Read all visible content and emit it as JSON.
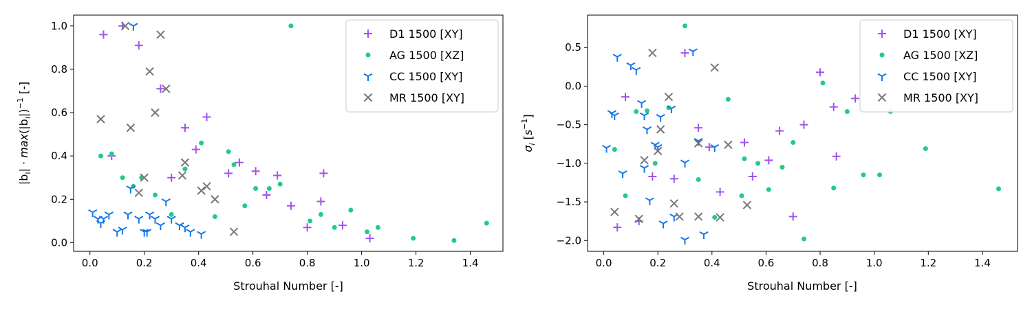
{
  "colors": {
    "D1": "#a052f0",
    "AG": "#22cc88",
    "CC": "#1177ee",
    "MR": "#777777"
  },
  "chart_data": [
    {
      "type": "scatter",
      "xlabel": "Strouhal Number [-]",
      "ylabel": "|b_i| · max(|b_i|)^{-1} [-]",
      "xlim": [
        -0.06,
        1.52
      ],
      "ylim": [
        -0.04,
        1.05
      ],
      "xticks": [
        0.0,
        0.2,
        0.4,
        0.6,
        0.8,
        1.0,
        1.2,
        1.4
      ],
      "xtick_labels": [
        "0.0",
        "0.2",
        "0.4",
        "0.6",
        "0.8",
        "1.0",
        "1.2",
        "1.4"
      ],
      "yticks": [
        0.0,
        0.2,
        0.4,
        0.6,
        0.8,
        1.0
      ],
      "ytick_labels": [
        "0.0",
        "0.2",
        "0.4",
        "0.6",
        "0.8",
        "1.0"
      ],
      "legend_position": "top-right",
      "series": [
        {
          "name": "D1 1500 [XY]",
          "key": "D1",
          "marker": "plus",
          "points": [
            [
              0.05,
              0.96
            ],
            [
              0.08,
              0.4
            ],
            [
              0.12,
              1.0
            ],
            [
              0.18,
              0.91
            ],
            [
              0.26,
              0.71
            ],
            [
              0.3,
              0.3
            ],
            [
              0.35,
              0.53
            ],
            [
              0.39,
              0.43
            ],
            [
              0.43,
              0.58
            ],
            [
              0.51,
              0.32
            ],
            [
              0.55,
              0.37
            ],
            [
              0.61,
              0.33
            ],
            [
              0.65,
              0.22
            ],
            [
              0.69,
              0.31
            ],
            [
              0.74,
              0.17
            ],
            [
              0.8,
              0.07
            ],
            [
              0.85,
              0.19
            ],
            [
              0.86,
              0.32
            ],
            [
              0.93,
              0.08
            ],
            [
              1.03,
              0.02
            ]
          ]
        },
        {
          "name": "AG 1500 [XZ]",
          "key": "AG",
          "marker": "dot",
          "points": [
            [
              0.04,
              0.4
            ],
            [
              0.08,
              0.41
            ],
            [
              0.12,
              0.3
            ],
            [
              0.16,
              0.26
            ],
            [
              0.19,
              0.3
            ],
            [
              0.24,
              0.22
            ],
            [
              0.3,
              0.13
            ],
            [
              0.35,
              0.34
            ],
            [
              0.41,
              0.46
            ],
            [
              0.46,
              0.12
            ],
            [
              0.51,
              0.42
            ],
            [
              0.53,
              0.36
            ],
            [
              0.57,
              0.17
            ],
            [
              0.61,
              0.25
            ],
            [
              0.66,
              0.25
            ],
            [
              0.7,
              0.27
            ],
            [
              0.74,
              1.0
            ],
            [
              0.81,
              0.1
            ],
            [
              0.85,
              0.13
            ],
            [
              0.9,
              0.07
            ],
            [
              0.96,
              0.15
            ],
            [
              1.02,
              0.05
            ],
            [
              1.06,
              0.07
            ],
            [
              1.19,
              0.02
            ],
            [
              1.34,
              0.01
            ],
            [
              1.46,
              0.09
            ]
          ]
        },
        {
          "name": "CC 1500 [XY]",
          "key": "CC",
          "marker": "tri",
          "points": [
            [
              0.01,
              0.14
            ],
            [
              0.03,
              0.11
            ],
            [
              0.04,
              0.09
            ],
            [
              0.05,
              0.11
            ],
            [
              0.07,
              0.13
            ],
            [
              0.1,
              0.05
            ],
            [
              0.12,
              0.06
            ],
            [
              0.14,
              0.13
            ],
            [
              0.15,
              0.25
            ],
            [
              0.16,
              1.0
            ],
            [
              0.18,
              0.11
            ],
            [
              0.2,
              0.05
            ],
            [
              0.21,
              0.05
            ],
            [
              0.22,
              0.13
            ],
            [
              0.24,
              0.11
            ],
            [
              0.26,
              0.08
            ],
            [
              0.28,
              0.19
            ],
            [
              0.3,
              0.11
            ],
            [
              0.33,
              0.08
            ],
            [
              0.35,
              0.07
            ],
            [
              0.37,
              0.05
            ],
            [
              0.41,
              0.04
            ]
          ]
        },
        {
          "name": "MR 1500 [XY]",
          "key": "MR",
          "marker": "x",
          "points": [
            [
              0.04,
              0.57
            ],
            [
              0.13,
              1.0
            ],
            [
              0.15,
              0.53
            ],
            [
              0.18,
              0.23
            ],
            [
              0.2,
              0.3
            ],
            [
              0.22,
              0.79
            ],
            [
              0.24,
              0.6
            ],
            [
              0.26,
              0.96
            ],
            [
              0.28,
              0.71
            ],
            [
              0.34,
              0.31
            ],
            [
              0.35,
              0.37
            ],
            [
              0.41,
              0.24
            ],
            [
              0.43,
              0.26
            ],
            [
              0.46,
              0.2
            ],
            [
              0.53,
              0.05
            ]
          ]
        }
      ]
    },
    {
      "type": "scatter",
      "xlabel": "Strouhal Number [-]",
      "ylabel": "σ_i [s^{-1}]",
      "xlim": [
        -0.06,
        1.53
      ],
      "ylim": [
        -2.14,
        0.92
      ],
      "xticks": [
        0.0,
        0.2,
        0.4,
        0.6,
        0.8,
        1.0,
        1.2,
        1.4
      ],
      "xtick_labels": [
        "0.0",
        "0.2",
        "0.4",
        "0.6",
        "0.8",
        "1.0",
        "1.2",
        "1.4"
      ],
      "yticks": [
        0.5,
        0.0,
        -0.5,
        -1.0,
        -1.5,
        -2.0
      ],
      "ytick_labels": [
        "0.5",
        "0.0",
        "−0.5",
        "−1.0",
        "−1.5",
        "−2.0"
      ],
      "legend_position": "top-right",
      "series": [
        {
          "name": "D1 1500 [XY]",
          "key": "D1",
          "marker": "plus",
          "points": [
            [
              0.05,
              -1.83
            ],
            [
              0.08,
              -0.14
            ],
            [
              0.13,
              -1.75
            ],
            [
              0.18,
              -1.17
            ],
            [
              0.26,
              -1.2
            ],
            [
              0.3,
              0.43
            ],
            [
              0.35,
              -0.54
            ],
            [
              0.39,
              -0.79
            ],
            [
              0.43,
              -1.37
            ],
            [
              0.52,
              -0.73
            ],
            [
              0.55,
              -1.17
            ],
            [
              0.61,
              -0.96
            ],
            [
              0.65,
              -0.58
            ],
            [
              0.7,
              -1.69
            ],
            [
              0.74,
              -0.5
            ],
            [
              0.8,
              0.18
            ],
            [
              0.85,
              -0.27
            ],
            [
              0.86,
              -0.91
            ],
            [
              0.93,
              -0.16
            ]
          ]
        },
        {
          "name": "AG 1500 [XZ]",
          "key": "AG",
          "marker": "dot",
          "points": [
            [
              0.04,
              -0.82
            ],
            [
              0.08,
              -1.42
            ],
            [
              0.12,
              -0.33
            ],
            [
              0.16,
              -0.32
            ],
            [
              0.19,
              -1.0
            ],
            [
              0.24,
              -0.28
            ],
            [
              0.3,
              0.78
            ],
            [
              0.35,
              -1.21
            ],
            [
              0.41,
              -1.7
            ],
            [
              0.46,
              -0.17
            ],
            [
              0.51,
              -1.42
            ],
            [
              0.52,
              -0.94
            ],
            [
              0.57,
              -1.0
            ],
            [
              0.61,
              -1.34
            ],
            [
              0.66,
              -1.05
            ],
            [
              0.7,
              -0.73
            ],
            [
              0.74,
              -1.98
            ],
            [
              0.81,
              0.04
            ],
            [
              0.9,
              -0.33
            ],
            [
              0.96,
              -1.15
            ],
            [
              1.02,
              -1.15
            ],
            [
              1.06,
              -0.33
            ],
            [
              1.19,
              -0.81
            ],
            [
              0.85,
              -1.32
            ],
            [
              1.46,
              -1.33
            ]
          ]
        },
        {
          "name": "CC 1500 [XY]",
          "key": "CC",
          "marker": "tri",
          "points": [
            [
              0.01,
              -0.8
            ],
            [
              0.03,
              -0.35
            ],
            [
              0.04,
              -0.38
            ],
            [
              0.05,
              0.38
            ],
            [
              0.07,
              -1.13
            ],
            [
              0.1,
              0.27
            ],
            [
              0.12,
              0.21
            ],
            [
              0.14,
              -0.22
            ],
            [
              0.15,
              -0.38
            ],
            [
              0.15,
              -1.06
            ],
            [
              0.16,
              -0.56
            ],
            [
              0.17,
              -1.48
            ],
            [
              0.19,
              -0.76
            ],
            [
              0.2,
              -0.79
            ],
            [
              0.21,
              -0.4
            ],
            [
              0.22,
              -1.78
            ],
            [
              0.25,
              -0.29
            ],
            [
              0.26,
              -1.69
            ],
            [
              0.3,
              -1.99
            ],
            [
              0.3,
              -0.99
            ],
            [
              0.33,
              0.45
            ],
            [
              0.35,
              -0.71
            ],
            [
              0.37,
              -1.92
            ],
            [
              0.41,
              -0.79
            ]
          ]
        },
        {
          "name": "MR 1500 [XY]",
          "key": "MR",
          "marker": "x",
          "points": [
            [
              0.04,
              -1.63
            ],
            [
              0.13,
              -1.72
            ],
            [
              0.15,
              -0.96
            ],
            [
              0.18,
              0.43
            ],
            [
              0.2,
              -0.84
            ],
            [
              0.21,
              -0.56
            ],
            [
              0.24,
              -0.14
            ],
            [
              0.26,
              -1.52
            ],
            [
              0.28,
              -1.69
            ],
            [
              0.35,
              -1.69
            ],
            [
              0.35,
              -0.74
            ],
            [
              0.41,
              0.24
            ],
            [
              0.43,
              -1.7
            ],
            [
              0.46,
              -0.76
            ],
            [
              0.53,
              -1.54
            ]
          ]
        }
      ]
    }
  ]
}
